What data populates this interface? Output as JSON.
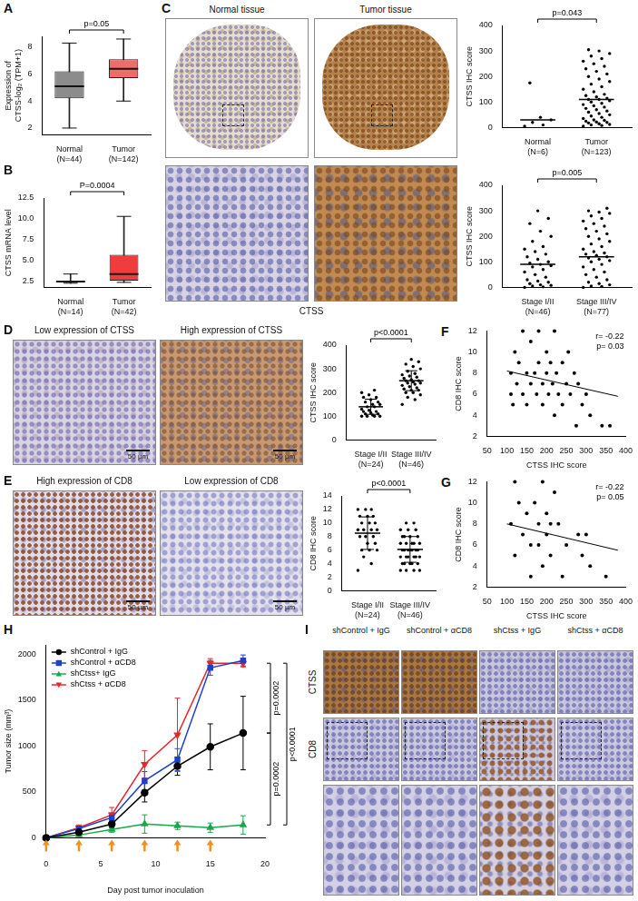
{
  "chart_data": [
    {
      "panel": "A",
      "type": "box",
      "y_label": "Expression of CTSS-log₂ (TPM+1)",
      "categories": [
        "Normal (N=44)",
        "Tumor (N=142)"
      ],
      "colors": [
        "#8c8c8c",
        "#f26b6b"
      ],
      "min": [
        2.0,
        4.0
      ],
      "q1": [
        4.2,
        5.7
      ],
      "median": [
        5.1,
        6.4
      ],
      "q3": [
        6.2,
        7.1
      ],
      "max": [
        8.3,
        8.6
      ],
      "ylim": [
        1.5,
        8.8
      ],
      "yticks": [
        2,
        4,
        6,
        8
      ],
      "p_value": "p=0.05",
      "grid": false
    },
    {
      "panel": "B",
      "type": "box",
      "y_label": "CTSS mRNA level",
      "categories": [
        "Normal (N=14)",
        "Tumor (N=42)"
      ],
      "colors": [
        "#8c8c8c",
        "#f03c3c"
      ],
      "min": [
        2.3,
        2.4
      ],
      "q1": [
        2.4,
        2.6
      ],
      "median": [
        2.5,
        3.4
      ],
      "q3": [
        2.6,
        5.7
      ],
      "max": [
        3.4,
        10.3
      ],
      "ylim": [
        1.8,
        12.5
      ],
      "yticks": [
        2.5,
        {
          "value": 5,
          "label": "5.0"
        },
        7.5,
        {
          "value": 10,
          "label": "10.0"
        },
        12.5
      ],
      "p_value": "P=0.0004",
      "grid": false
    },
    {
      "type": "strip",
      "y_label": "CTSS IHC score",
      "color": "#000000",
      "groups": [
        {
          "name": "Normal (N=6)",
          "values": [
            5,
            10,
            20,
            30,
            40,
            175
          ],
          "median": 30
        },
        {
          "name": "Tumor (N=123)",
          "values": [
            5,
            8,
            10,
            12,
            15,
            18,
            20,
            22,
            25,
            28,
            30,
            35,
            40,
            45,
            50,
            55,
            60,
            65,
            70,
            75,
            80,
            85,
            90,
            95,
            100,
            105,
            110,
            110,
            115,
            120,
            125,
            130,
            140,
            150,
            160,
            170,
            180,
            190,
            200,
            210,
            220,
            230,
            240,
            250,
            260,
            270,
            280,
            290,
            300,
            305
          ],
          "median": 110
        }
      ],
      "ylim": [
        0,
        400
      ],
      "yticks": [
        0,
        100,
        200,
        300,
        400
      ],
      "p_value": "p=0.043",
      "grid": false
    },
    {
      "type": "strip",
      "y_label": "CTSS IHC score",
      "color": "#000000",
      "groups": [
        {
          "name": "Stage I/II (N=46)",
          "values": [
            0,
            2,
            5,
            8,
            10,
            15,
            20,
            25,
            30,
            40,
            50,
            60,
            70,
            80,
            85,
            90,
            95,
            100,
            110,
            120,
            130,
            140,
            150,
            160,
            180,
            200,
            220,
            250,
            270,
            300
          ],
          "median": 90
        },
        {
          "name": "Stage III/IV (N=77)",
          "values": [
            0,
            3,
            5,
            10,
            15,
            20,
            30,
            40,
            50,
            60,
            70,
            80,
            90,
            100,
            105,
            110,
            115,
            120,
            125,
            130,
            135,
            140,
            150,
            160,
            170,
            180,
            190,
            200,
            210,
            220,
            230,
            240,
            250,
            260,
            270,
            280,
            290,
            295,
            300,
            310
          ],
          "median": 120
        }
      ],
      "ylim": [
        0,
        400
      ],
      "yticks": [
        0,
        100,
        200,
        300,
        400
      ],
      "p_value": "p=0.005",
      "grid": false
    },
    {
      "type": "strip",
      "y_label": "CTSS IHC score",
      "color": "#000000",
      "groups": [
        {
          "name": "Stage I/II (N=24)",
          "values": [
            100,
            100,
            100,
            100,
            105,
            110,
            110,
            115,
            120,
            120,
            125,
            130,
            140,
            140,
            150,
            150,
            160,
            160,
            170,
            180,
            180,
            190,
            200,
            210
          ],
          "mean": 140,
          "sd": 32
        },
        {
          "name": "Stage III/IV (N=46)",
          "values": [
            150,
            170,
            180,
            190,
            200,
            200,
            210,
            210,
            215,
            220,
            225,
            230,
            235,
            240,
            240,
            245,
            250,
            250,
            255,
            260,
            265,
            270,
            275,
            280,
            290,
            300,
            310,
            320,
            330,
            340
          ],
          "mean": 250,
          "sd": 42
        }
      ],
      "ylim": [
        0,
        400
      ],
      "yticks": [
        0,
        100,
        200,
        300,
        400
      ],
      "p_value": "p<0.0001",
      "grid": false
    },
    {
      "type": "strip",
      "y_label": "CD8 IHC score",
      "color": "#000000",
      "groups": [
        {
          "name": "Stage I/II (N=24)",
          "values": [
            3,
            4,
            5,
            6,
            6,
            6,
            7,
            7,
            8,
            8,
            8,
            9,
            9,
            9,
            9,
            10,
            10,
            10,
            11,
            11,
            11,
            12,
            12,
            12
          ],
          "mean": 8.5,
          "sd": 2.4
        },
        {
          "name": "Stage III/IV (N=46)",
          "values": [
            3,
            3,
            3,
            3,
            4,
            4,
            4,
            4,
            4,
            5,
            5,
            5,
            5,
            5,
            5,
            6,
            6,
            6,
            6,
            6,
            6,
            6,
            7,
            7,
            7,
            7,
            7,
            8,
            8,
            8,
            8,
            9,
            9,
            9,
            10,
            10
          ],
          "mean": 6.1,
          "sd": 1.9
        }
      ],
      "ylim": [
        0,
        14
      ],
      "yticks": [
        0,
        2,
        4,
        6,
        8,
        10,
        12,
        14
      ],
      "p_value": "p<0.0001",
      "grid": false
    },
    {
      "panel": "F",
      "type": "scatter",
      "x_label": "CTSS IHC score",
      "y_label": "CD8 IHC score",
      "color": "#000000",
      "x": [
        110,
        110,
        115,
        120,
        125,
        130,
        140,
        140,
        150,
        150,
        160,
        160,
        170,
        175,
        180,
        180,
        190,
        190,
        200,
        200,
        205,
        210,
        215,
        220,
        220,
        225,
        230,
        240,
        240,
        250,
        255,
        260,
        270,
        275,
        280,
        290,
        300,
        310,
        340,
        360
      ],
      "y": [
        8,
        6,
        5,
        10,
        7,
        9,
        12,
        6,
        8,
        5,
        7,
        11,
        8,
        6,
        12,
        9,
        7,
        5,
        10,
        8,
        6,
        9,
        7,
        12,
        4,
        8,
        6,
        9,
        5,
        7,
        10,
        6,
        8,
        3,
        7,
        5,
        6,
        4,
        3,
        3
      ],
      "trend": {
        "x": [
          100,
          380
        ],
        "y": [
          8.2,
          5.8
        ]
      },
      "annotations": [
        "r= -0.22",
        "p= 0.03"
      ],
      "xlim": [
        50,
        400
      ],
      "xticks": [
        50,
        100,
        150,
        200,
        250,
        300,
        350,
        400
      ],
      "ylim": [
        2,
        12
      ],
      "yticks": [
        2,
        4,
        6,
        8,
        10,
        12
      ],
      "grid": false
    },
    {
      "panel": "G",
      "type": "scatter",
      "x_label": "CTSS IHC score",
      "y_label": "CD8 IHC score",
      "color": "#000000",
      "x": [
        110,
        120,
        120,
        130,
        140,
        150,
        160,
        160,
        170,
        180,
        180,
        190,
        190,
        200,
        200,
        210,
        210,
        220,
        230,
        240,
        250,
        280,
        290,
        300,
        310,
        350
      ],
      "y": [
        8,
        5,
        12,
        10,
        7,
        9,
        3,
        6,
        10,
        6,
        8,
        12,
        4,
        7,
        9,
        5,
        8,
        11,
        8,
        3,
        6,
        7,
        5,
        7,
        4,
        3
      ],
      "trend": {
        "x": [
          100,
          380
        ],
        "y": [
          8.0,
          5.5
        ]
      },
      "annotations": [
        "r= -0.22",
        "p= 0.05"
      ],
      "xlim": [
        50,
        400
      ],
      "xticks": [
        50,
        100,
        150,
        200,
        250,
        300,
        350,
        400
      ],
      "ylim": [
        2,
        12
      ],
      "yticks": [
        2,
        4,
        6,
        8,
        10,
        12
      ],
      "grid": false
    },
    {
      "panel": "H",
      "type": "line",
      "x_label": "Day post tumor inoculation",
      "y_label": "Tumor size (mm³)",
      "x": [
        0,
        3,
        6,
        9,
        12,
        15,
        18
      ],
      "series": [
        {
          "name": "shControl + IgG",
          "color": "#000000",
          "marker": "circle",
          "values": [
            0,
            60,
            150,
            490,
            780,
            990,
            1140
          ],
          "error": [
            0,
            20,
            40,
            100,
            100,
            250,
            400
          ]
        },
        {
          "name": "shControl + αCD8",
          "color": "#1f3fd1",
          "marker": "square",
          "values": [
            0,
            100,
            220,
            620,
            850,
            1850,
            1930
          ],
          "error": [
            0,
            20,
            50,
            100,
            120,
            80,
            60
          ]
        },
        {
          "name": "shCtss+ IgG",
          "color": "#18a84a",
          "marker": "triangle",
          "values": [
            0,
            30,
            90,
            150,
            130,
            110,
            140
          ],
          "error": [
            0,
            10,
            30,
            100,
            40,
            50,
            100
          ]
        },
        {
          "name": "shCtss + αCD8",
          "color": "#e8262a",
          "marker": "triangle-down",
          "values": [
            0,
            110,
            250,
            800,
            1120,
            1900,
            1900
          ],
          "error": [
            0,
            30,
            80,
            150,
            400,
            50,
            40
          ]
        }
      ],
      "xlim": [
        0,
        20
      ],
      "xticks": [
        0,
        5,
        10,
        15,
        20
      ],
      "ylim": [
        0,
        2100
      ],
      "yticks": [
        0,
        500,
        1000,
        1500,
        2000
      ],
      "legend": "top-left",
      "injections": {
        "x": [
          0,
          3,
          6,
          9,
          12,
          15
        ],
        "color": "#f0901e"
      },
      "comparisons": [
        {
          "text": "p=0.0002",
          "from": 1900,
          "to": 1140
        },
        {
          "text": "p=0.0002",
          "from": 1140,
          "to": 140
        },
        {
          "text": "p<0.0001",
          "from": 1900,
          "to": 140
        }
      ],
      "grid": false
    }
  ],
  "image_panels": [
    {
      "panel": "C",
      "captions": [
        "Normal tissue",
        "Tumor tissue"
      ],
      "stain": "CTSS"
    },
    {
      "panel": "D",
      "captions": [
        "Low expression of CTSS",
        "High expression of CTSS"
      ],
      "scale_bar": "50 μm"
    },
    {
      "panel": "E",
      "captions": [
        "High expression of CD8",
        "Low expression of CD8"
      ],
      "scale_bar": "50 μm"
    },
    {
      "panel": "I",
      "columns": [
        "shControl + IgG",
        "shControl + αCD8",
        "shCtss + IgG",
        "shCtss + αCD8"
      ],
      "rows": [
        "CTSS",
        "CD8"
      ]
    }
  ]
}
